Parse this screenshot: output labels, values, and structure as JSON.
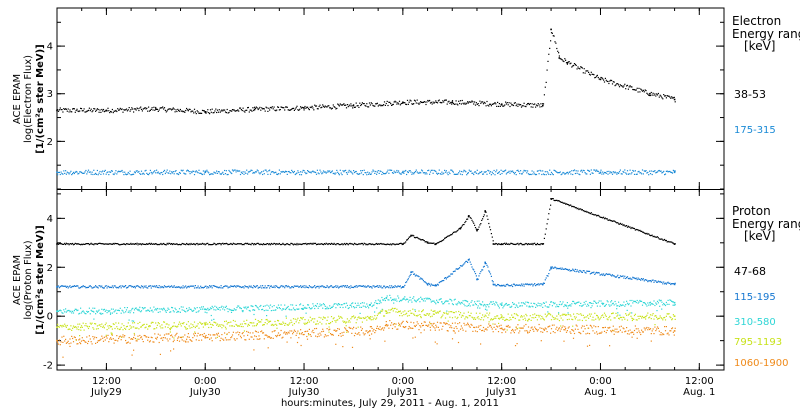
{
  "colors": {
    "38-53": "#000000",
    "175-315": "#1a8ad6",
    "47-68": "#000000",
    "115-195": "#1577d1",
    "310-580": "#2fd6d6",
    "795-1193": "#c8e21a",
    "1060-1900": "#ef8a1a"
  },
  "xaxis": {
    "label": "hours:minutes, July 29, 2011 - Aug.  1, 2011",
    "range": [
      "2011-07-29T06:00",
      "2011-08-01T15:00"
    ],
    "ticks": [
      {
        "t": "2011-07-29T12:00",
        "time": "12:00",
        "date": "July29"
      },
      {
        "t": "2011-07-30T00:00",
        "time": "0:00",
        "date": "July30"
      },
      {
        "t": "2011-07-30T12:00",
        "time": "12:00",
        "date": "July30"
      },
      {
        "t": "2011-07-31T00:00",
        "time": "0:00",
        "date": "July31"
      },
      {
        "t": "2011-07-31T12:00",
        "time": "12:00",
        "date": "July31"
      },
      {
        "t": "2011-08-01T00:00",
        "time": "0:00",
        "date": "Aug.  1"
      },
      {
        "t": "2011-08-01T12:00",
        "time": "12:00",
        "date": "Aug.  1"
      }
    ]
  },
  "panels": [
    {
      "ylabel": [
        "ACE EPAM",
        "log(Electron Flux)",
        "[1/(cm²s ster MeV)]"
      ],
      "legend_title": [
        "Electron",
        "Energy range",
        "[keV]"
      ],
      "yticks": [
        "2",
        "3",
        "4"
      ]
    },
    {
      "ylabel": [
        "ACE EPAM",
        "log(Proton Flux)",
        "[1/(cm²s ster MeV)]"
      ],
      "legend_title": [
        "Proton",
        "Energy range",
        "[keV]"
      ],
      "yticks": [
        "-2",
        "0",
        "2",
        "4"
      ]
    }
  ],
  "chart_data": [
    {
      "type": "scatter",
      "title": "",
      "xlabel": "hours:minutes, July 29, 2011 - Aug.  1, 2011",
      "ylabel": "ACE EPAM log(Electron Flux) [1/(cm²s ster MeV)]",
      "xlim": [
        "2011-07-29T06:00",
        "2011-08-01T15:00"
      ],
      "ylim": [
        1.0,
        4.8
      ],
      "grid": false,
      "legend": "right",
      "series": [
        {
          "name": "38-53",
          "x": [
            "2011-07-29T06:00",
            "2011-07-29T12:00",
            "2011-07-29T18:00",
            "2011-07-30T00:00",
            "2011-07-30T06:00",
            "2011-07-30T12:00",
            "2011-07-30T18:00",
            "2011-07-31T00:00",
            "2011-07-31T06:00",
            "2011-07-31T12:00",
            "2011-07-31T17:00",
            "2011-07-31T18:00",
            "2011-07-31T19:00",
            "2011-07-31T20:00",
            "2011-08-01T00:00",
            "2011-08-01T06:00",
            "2011-08-01T09:00"
          ],
          "y": [
            2.65,
            2.65,
            2.68,
            2.62,
            2.67,
            2.7,
            2.75,
            2.82,
            2.82,
            2.78,
            2.75,
            4.35,
            3.75,
            3.65,
            3.3,
            3.0,
            2.88
          ]
        },
        {
          "name": "175-315",
          "x": [
            "2011-07-29T06:00",
            "2011-07-30T00:00",
            "2011-07-31T00:00",
            "2011-08-01T00:00",
            "2011-08-01T09:00"
          ],
          "y": [
            1.35,
            1.35,
            1.35,
            1.35,
            1.35
          ]
        }
      ]
    },
    {
      "type": "scatter",
      "title": "",
      "xlabel": "hours:minutes, July 29, 2011 - Aug.  1, 2011",
      "ylabel": "ACE EPAM log(Proton Flux) [1/(cm²s ster MeV)]",
      "xlim": [
        "2011-07-29T06:00",
        "2011-08-01T15:00"
      ],
      "ylim": [
        -2.2,
        5.2
      ],
      "grid": false,
      "legend": "right",
      "series": [
        {
          "name": "47-68",
          "x": [
            "2011-07-29T06:00",
            "2011-07-31T00:00",
            "2011-07-31T01:00",
            "2011-07-31T03:00",
            "2011-07-31T04:00",
            "2011-07-31T07:00",
            "2011-07-31T08:00",
            "2011-07-31T09:00",
            "2011-07-31T10:00",
            "2011-07-31T11:00",
            "2011-07-31T12:00",
            "2011-07-31T17:00",
            "2011-07-31T18:00",
            "2011-08-01T09:00"
          ],
          "y": [
            2.95,
            2.95,
            3.3,
            3.0,
            2.95,
            3.6,
            4.1,
            3.5,
            4.3,
            2.95,
            2.95,
            2.95,
            4.8,
            2.95
          ]
        },
        {
          "name": "115-195",
          "x": [
            "2011-07-29T06:00",
            "2011-07-31T00:00",
            "2011-07-31T01:00",
            "2011-07-31T03:00",
            "2011-07-31T04:00",
            "2011-07-31T08:00",
            "2011-07-31T09:00",
            "2011-07-31T10:00",
            "2011-07-31T11:00",
            "2011-07-31T12:00",
            "2011-07-31T17:00",
            "2011-07-31T18:00",
            "2011-08-01T09:00"
          ],
          "y": [
            1.2,
            1.2,
            1.8,
            1.3,
            1.25,
            2.3,
            1.5,
            2.2,
            1.3,
            1.25,
            1.3,
            2.0,
            1.3
          ]
        },
        {
          "name": "310-580",
          "x": [
            "2011-07-29T06:00",
            "2011-07-30T00:00",
            "2011-07-30T20:00",
            "2011-07-30T22:00",
            "2011-07-31T12:00",
            "2011-08-01T09:00"
          ],
          "y": [
            0.2,
            0.28,
            0.45,
            0.75,
            0.45,
            0.55
          ]
        },
        {
          "name": "795-1193",
          "x": [
            "2011-07-29T06:00",
            "2011-07-30T00:00",
            "2011-07-30T20:00",
            "2011-07-30T22:00",
            "2011-07-31T12:00",
            "2011-08-01T09:00"
          ],
          "y": [
            -0.45,
            -0.35,
            -0.1,
            0.2,
            -0.05,
            0.0
          ]
        },
        {
          "name": "1060-1900",
          "x": [
            "2011-07-29T06:00",
            "2011-07-30T00:00",
            "2011-07-30T20:00",
            "2011-07-30T22:00",
            "2011-07-31T12:00",
            "2011-08-01T09:00"
          ],
          "y": [
            -1.0,
            -0.85,
            -0.6,
            -0.35,
            -0.5,
            -0.6
          ]
        }
      ]
    }
  ]
}
